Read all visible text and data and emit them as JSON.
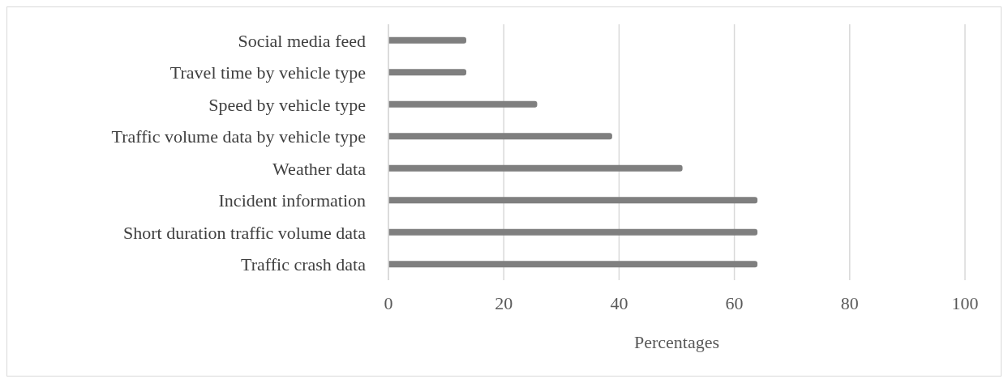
{
  "chart_data": {
    "type": "bar",
    "orientation": "horizontal",
    "xlabel": "Percentages",
    "categories": [
      "Social media feed",
      "Travel time by vehicle type",
      "Speed by vehicle type",
      "Traffic volume data by vehicle type",
      "Weather data",
      "Incident information",
      "Short duration traffic volume data",
      "Traffic crash data"
    ],
    "values": [
      13.5,
      13.5,
      25.8,
      38.8,
      51,
      64,
      64,
      64
    ],
    "color": "#7f7f7f",
    "xlim": [
      0,
      100
    ],
    "xticks": [
      0,
      20,
      40,
      60,
      80,
      100
    ],
    "grid": "x",
    "legend": false
  }
}
